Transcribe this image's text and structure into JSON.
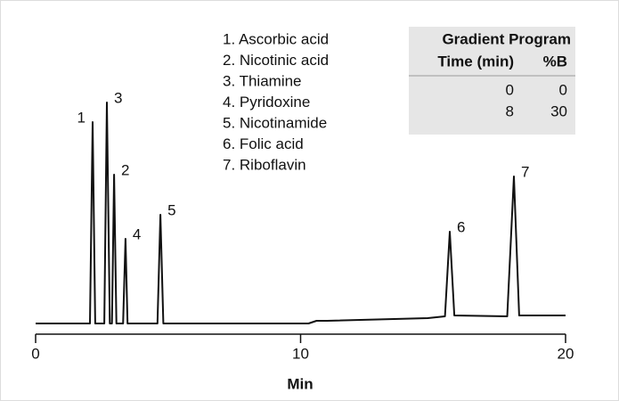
{
  "chart_data": {
    "type": "line",
    "xlabel": "Min",
    "xlim": [
      0,
      20
    ],
    "xticks": [
      0,
      10,
      20
    ],
    "ylim": [
      0,
      260
    ],
    "series": [
      {
        "color": "#111111",
        "x": [
          0,
          2.05,
          2.15,
          2.25,
          2.59,
          2.69,
          2.8,
          2.88,
          2.96,
          3.05,
          3.3,
          3.39,
          3.47,
          4.6,
          4.71,
          4.82,
          10.3,
          10.6,
          11,
          14.8,
          15.45,
          15.63,
          15.8,
          17.8,
          18.05,
          18.25,
          20
        ],
        "values": [
          0,
          0,
          226,
          0,
          0,
          248,
          0,
          0,
          167,
          0,
          0,
          95,
          0,
          0,
          122,
          0,
          0,
          3,
          3,
          6,
          8,
          103,
          9,
          8,
          165,
          9,
          9
        ]
      }
    ],
    "peak_labels": [
      "1",
      "3",
      "2",
      "4",
      "5",
      "6",
      "7"
    ],
    "compounds": [
      "1. Ascorbic acid",
      "2. Nicotinic acid",
      "3. Thiamine",
      "4. Pyridoxine",
      "5. Nicotinamide",
      "6. Folic acid",
      "7. Riboflavin"
    ],
    "gradient_table": {
      "title": "Gradient Program",
      "columns": [
        "Time (min)",
        "%B"
      ],
      "rows": [
        [
          0,
          0
        ],
        [
          8,
          30
        ]
      ]
    }
  }
}
